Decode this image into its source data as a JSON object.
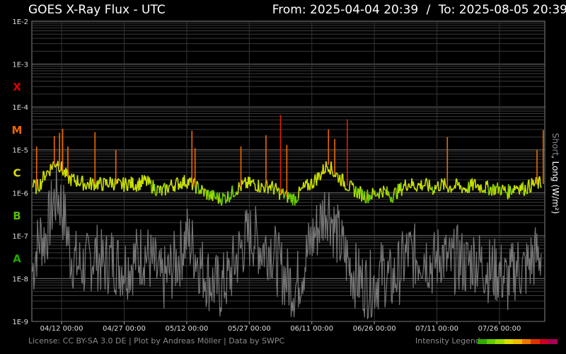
{
  "header": {
    "title": "GOES X-Ray Flux - UTC",
    "from_label": "From:",
    "from_value": "2025-04-04 20:39",
    "separator": "/",
    "to_label": "To:",
    "to_value": "2025-08-05 20:39"
  },
  "footer": {
    "credits": "License: CC BY-SA 3.0 DE | Plot by Andreas Möller | Data by SWPC",
    "legend_label": "Intensity Legend"
  },
  "side_axis": {
    "short": "Short",
    "separator": ",",
    "long": "Long (W/m²)"
  },
  "intensity_colors": [
    "#33aa00",
    "#66cc00",
    "#99dd00",
    "#dddd00",
    "#eebb00",
    "#ee7700",
    "#dd3300",
    "#cc0022",
    "#aa0055"
  ],
  "chart_data": {
    "type": "line",
    "title": "GOES X-Ray Flux - UTC",
    "ylabel": "Short, Long (W/m²)",
    "yscale": "log",
    "ylim": [
      1e-09,
      0.01
    ],
    "y_ticks": [
      "1E-9",
      "1E-8",
      "1E-7",
      "1E-6",
      "1E-5",
      "1E-4",
      "1E-3",
      "1E-2"
    ],
    "class_labels": [
      {
        "label": "X",
        "color": "#dd0000",
        "level": 0.0003
      },
      {
        "label": "M",
        "color": "#ee6600",
        "level": 3e-05
      },
      {
        "label": "C",
        "color": "#dddd00",
        "level": 3e-06
      },
      {
        "label": "B",
        "color": "#55bb00",
        "level": 3e-07
      },
      {
        "label": "A",
        "color": "#22aa00",
        "level": 3e-08
      }
    ],
    "xlim": [
      "2025-04-04 20:39",
      "2025-08-05 20:39"
    ],
    "x_ticks": [
      {
        "date": "2025-04-12 00:00",
        "label": "04/12 00:00"
      },
      {
        "date": "2025-04-27 00:00",
        "label": "04/27 00:00"
      },
      {
        "date": "2025-05-12 00:00",
        "label": "05/12 00:00"
      },
      {
        "date": "2025-05-27 00:00",
        "label": "05/27 00:00"
      },
      {
        "date": "2025-06-11 00:00",
        "label": "06/11 00:00"
      },
      {
        "date": "2025-06-26 00:00",
        "label": "06/26 00:00"
      },
      {
        "date": "2025-07-11 00:00",
        "label": "07/11 00:00"
      },
      {
        "date": "2025-07-26 00:00",
        "label": "07/26 00:00"
      }
    ],
    "grid": true,
    "series": [
      {
        "name": "Long",
        "color_by_class": true,
        "points": [
          [
            "2025-04-05 00:00",
            1.4e-06
          ],
          [
            "2025-04-06 00:00",
            1.3e-06
          ],
          [
            "2025-04-07 00:00",
            1.6e-06
          ],
          [
            "2025-04-08 00:00",
            2.6e-06
          ],
          [
            "2025-04-09 00:00",
            3.2e-06
          ],
          [
            "2025-04-10 00:00",
            4.5e-06
          ],
          [
            "2025-04-11 00:00",
            5e-06
          ],
          [
            "2025-04-12 00:00",
            3.5e-06
          ],
          [
            "2025-04-13 00:00",
            2.5e-06
          ],
          [
            "2025-04-14 00:00",
            2e-06
          ],
          [
            "2025-04-16 00:00",
            1.8e-06
          ],
          [
            "2025-04-18 00:00",
            1.5e-06
          ],
          [
            "2025-04-20 00:00",
            1.6e-06
          ],
          [
            "2025-04-22 00:00",
            1.5e-06
          ],
          [
            "2025-04-24 00:00",
            1.7e-06
          ],
          [
            "2025-04-26 00:00",
            1.4e-06
          ],
          [
            "2025-04-28 00:00",
            1.6e-06
          ],
          [
            "2025-04-30 00:00",
            1.5e-06
          ],
          [
            "2025-05-02 00:00",
            1.8e-06
          ],
          [
            "2025-05-04 00:00",
            1.3e-06
          ],
          [
            "2025-05-06 00:00",
            1e-06
          ],
          [
            "2025-05-08 00:00",
            1.4e-06
          ],
          [
            "2025-05-10 00:00",
            1.6e-06
          ],
          [
            "2025-05-12 00:00",
            1.8e-06
          ],
          [
            "2025-05-14 00:00",
            1.4e-06
          ],
          [
            "2025-05-16 00:00",
            1e-06
          ],
          [
            "2025-05-18 00:00",
            8e-07
          ],
          [
            "2025-05-20 00:00",
            7e-07
          ],
          [
            "2025-05-22 00:00",
            8e-07
          ],
          [
            "2025-05-24 00:00",
            1.2e-06
          ],
          [
            "2025-05-26 00:00",
            1.5e-06
          ],
          [
            "2025-05-28 00:00",
            1.6e-06
          ],
          [
            "2025-05-30 00:00",
            1.3e-06
          ],
          [
            "2025-06-01 00:00",
            1.4e-06
          ],
          [
            "2025-06-03 00:00",
            1e-06
          ],
          [
            "2025-06-05 00:00",
            8e-07
          ],
          [
            "2025-06-07 00:00",
            7e-07
          ],
          [
            "2025-06-09 00:00",
            1.2e-06
          ],
          [
            "2025-06-11 00:00",
            1.6e-06
          ],
          [
            "2025-06-13 00:00",
            2.5e-06
          ],
          [
            "2025-06-14 00:00",
            3.5e-06
          ],
          [
            "2025-06-15 00:00",
            4.5e-06
          ],
          [
            "2025-06-16 00:00",
            3e-06
          ],
          [
            "2025-06-18 00:00",
            2e-06
          ],
          [
            "2025-06-20 00:00",
            1.3e-06
          ],
          [
            "2025-06-22 00:00",
            1e-06
          ],
          [
            "2025-06-24 00:00",
            8e-07
          ],
          [
            "2025-06-26 00:00",
            9e-07
          ],
          [
            "2025-06-28 00:00",
            1.1e-06
          ],
          [
            "2025-06-30 00:00",
            8e-07
          ],
          [
            "2025-07-02 00:00",
            1.1e-06
          ],
          [
            "2025-07-04 00:00",
            1.6e-06
          ],
          [
            "2025-07-06 00:00",
            1.4e-06
          ],
          [
            "2025-07-08 00:00",
            1.5e-06
          ],
          [
            "2025-07-10 00:00",
            1.2e-06
          ],
          [
            "2025-07-12 00:00",
            1.5e-06
          ],
          [
            "2025-07-14 00:00",
            1.3e-06
          ],
          [
            "2025-07-16 00:00",
            1.4e-06
          ],
          [
            "2025-07-18 00:00",
            1.2e-06
          ],
          [
            "2025-07-20 00:00",
            1.5e-06
          ],
          [
            "2025-07-22 00:00",
            1.3e-06
          ],
          [
            "2025-07-24 00:00",
            1.2e-06
          ],
          [
            "2025-07-26 00:00",
            1.2e-06
          ],
          [
            "2025-07-28 00:00",
            1e-06
          ],
          [
            "2025-07-30 00:00",
            1.4e-06
          ],
          [
            "2025-08-01 00:00",
            1.2e-06
          ],
          [
            "2025-08-03 00:00",
            1.5e-06
          ],
          [
            "2025-08-05 00:00",
            1.6e-06
          ]
        ],
        "flares": [
          [
            "2025-04-06 00:00",
            1.2e-05
          ],
          [
            "2025-04-10 06:00",
            2.1e-05
          ],
          [
            "2025-04-11 12:00",
            2.5e-05
          ],
          [
            "2025-04-12 06:00",
            3.1e-05
          ],
          [
            "2025-04-13 12:00",
            1.2e-05
          ],
          [
            "2025-04-20 00:00",
            2.6e-05
          ],
          [
            "2025-04-25 00:00",
            1e-05
          ],
          [
            "2025-05-13 06:00",
            2.8e-05
          ],
          [
            "2025-05-14 00:00",
            1.1e-05
          ],
          [
            "2025-05-25 00:00",
            1.2e-05
          ],
          [
            "2025-05-31 00:00",
            2.2e-05
          ],
          [
            "2025-06-03 12:00",
            6.5e-05
          ],
          [
            "2025-06-05 00:00",
            1.3e-05
          ],
          [
            "2025-06-15 00:00",
            3e-05
          ],
          [
            "2025-06-16 12:00",
            1.8e-05
          ],
          [
            "2025-06-19 12:00",
            5.2e-05
          ],
          [
            "2025-07-13 12:00",
            2e-05
          ],
          [
            "2025-08-04 00:00",
            1e-05
          ],
          [
            "2025-08-05 12:00",
            2.9e-05
          ]
        ]
      },
      {
        "name": "Short",
        "color": "#777777",
        "points": [
          [
            "2025-04-05 00:00",
            1.5e-08
          ],
          [
            "2025-04-06 00:00",
            5e-08
          ],
          [
            "2025-04-07 00:00",
            1e-07
          ],
          [
            "2025-04-08 00:00",
            8e-08
          ],
          [
            "2025-04-09 00:00",
            2e-07
          ],
          [
            "2025-04-10 00:00",
            6e-07
          ],
          [
            "2025-04-11 00:00",
            9e-07
          ],
          [
            "2025-04-12 00:00",
            5e-07
          ],
          [
            "2025-04-13 00:00",
            2e-07
          ],
          [
            "2025-04-14 00:00",
            4e-08
          ],
          [
            "2025-04-16 00:00",
            2e-08
          ],
          [
            "2025-04-18 00:00",
            2e-08
          ],
          [
            "2025-04-20 00:00",
            4e-08
          ],
          [
            "2025-04-22 00:00",
            2e-08
          ],
          [
            "2025-04-24 00:00",
            3e-08
          ],
          [
            "2025-04-26 00:00",
            2e-08
          ],
          [
            "2025-04-28 00:00",
            2e-08
          ],
          [
            "2025-04-30 00:00",
            3e-08
          ],
          [
            "2025-05-02 00:00",
            4e-08
          ],
          [
            "2025-05-04 00:00",
            2e-08
          ],
          [
            "2025-05-06 00:00",
            8e-09
          ],
          [
            "2025-05-08 00:00",
            1.5e-08
          ],
          [
            "2025-05-10 00:00",
            3e-08
          ],
          [
            "2025-05-12 00:00",
            1e-07
          ],
          [
            "2025-05-14 00:00",
            4e-08
          ],
          [
            "2025-05-16 00:00",
            1.5e-08
          ],
          [
            "2025-05-18 00:00",
            8e-09
          ],
          [
            "2025-05-20 00:00",
            6e-09
          ],
          [
            "2025-05-22 00:00",
            1e-08
          ],
          [
            "2025-05-24 00:00",
            3e-08
          ],
          [
            "2025-05-26 00:00",
            8e-08
          ],
          [
            "2025-05-28 00:00",
            1e-07
          ],
          [
            "2025-05-30 00:00",
            5e-08
          ],
          [
            "2025-06-01 00:00",
            6e-08
          ],
          [
            "2025-06-03 00:00",
            2e-08
          ],
          [
            "2025-06-05 00:00",
            1e-08
          ],
          [
            "2025-06-07 00:00",
            6e-09
          ],
          [
            "2025-06-09 00:00",
            2e-08
          ],
          [
            "2025-06-11 00:00",
            8e-08
          ],
          [
            "2025-06-13 00:00",
            2e-07
          ],
          [
            "2025-06-14 00:00",
            4e-07
          ],
          [
            "2025-06-15 00:00",
            5e-07
          ],
          [
            "2025-06-16 00:00",
            2e-07
          ],
          [
            "2025-06-18 00:00",
            6e-08
          ],
          [
            "2025-06-20 00:00",
            2e-08
          ],
          [
            "2025-06-22 00:00",
            1e-08
          ],
          [
            "2025-06-24 00:00",
            7e-09
          ],
          [
            "2025-06-26 00:00",
            8e-09
          ],
          [
            "2025-06-28 00:00",
            1.5e-08
          ],
          [
            "2025-06-30 00:00",
            8e-09
          ],
          [
            "2025-07-02 00:00",
            1.5e-08
          ],
          [
            "2025-07-04 00:00",
            4e-08
          ],
          [
            "2025-07-06 00:00",
            3e-08
          ],
          [
            "2025-07-08 00:00",
            4e-08
          ],
          [
            "2025-07-10 00:00",
            2e-08
          ],
          [
            "2025-07-12 00:00",
            4e-08
          ],
          [
            "2025-07-14 00:00",
            2e-08
          ],
          [
            "2025-07-16 00:00",
            3e-08
          ],
          [
            "2025-07-18 00:00",
            2e-08
          ],
          [
            "2025-07-20 00:00",
            3e-08
          ],
          [
            "2025-07-22 00:00",
            2e-08
          ],
          [
            "2025-07-24 00:00",
            1.5e-08
          ],
          [
            "2025-07-26 00:00",
            1.5e-08
          ],
          [
            "2025-07-28 00:00",
            8e-09
          ],
          [
            "2025-07-30 00:00",
            2e-08
          ],
          [
            "2025-08-01 00:00",
            1.5e-08
          ],
          [
            "2025-08-03 00:00",
            3e-08
          ],
          [
            "2025-08-05 00:00",
            4e-08
          ]
        ]
      }
    ]
  }
}
